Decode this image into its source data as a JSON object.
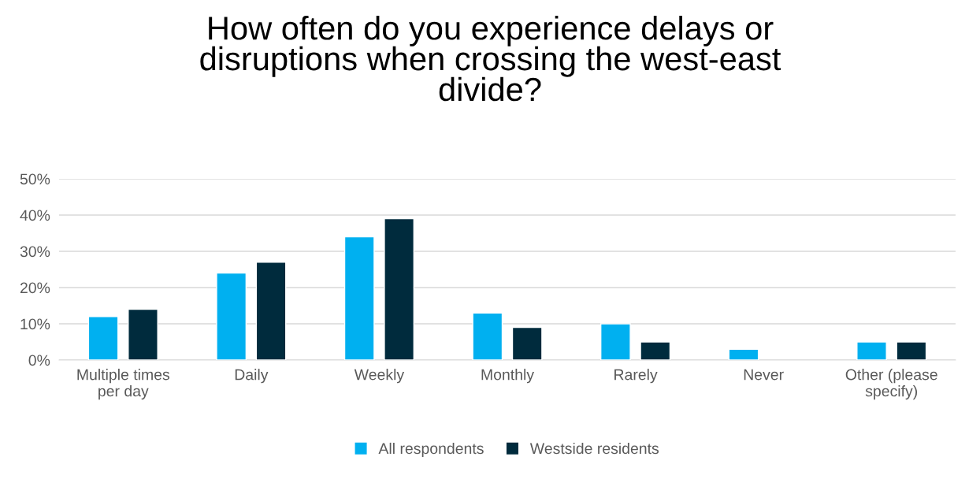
{
  "chart_data": {
    "type": "bar",
    "title": "How often do you experience delays or disruptions when crossing the west-east divide?",
    "categories": [
      "Multiple times per day",
      "Daily",
      "Weekly",
      "Monthly",
      "Rarely",
      "Never",
      "Other (please specify)"
    ],
    "series": [
      {
        "name": "All respondents",
        "color": "#00b0f0",
        "values": [
          12,
          24,
          34,
          13,
          10,
          3,
          5
        ]
      },
      {
        "name": "Westside residents",
        "color": "#002b3d",
        "values": [
          14,
          27,
          39,
          9,
          5,
          null,
          5
        ]
      }
    ],
    "ylim": [
      0,
      50
    ],
    "yticks": [
      {
        "value": 0,
        "label": "0%"
      },
      {
        "value": 10,
        "label": "10%"
      },
      {
        "value": 20,
        "label": "20%"
      },
      {
        "value": 30,
        "label": "30%"
      },
      {
        "value": 40,
        "label": "40%"
      },
      {
        "value": 50,
        "label": "50%"
      }
    ],
    "grid": "y",
    "legend": "bottom"
  }
}
